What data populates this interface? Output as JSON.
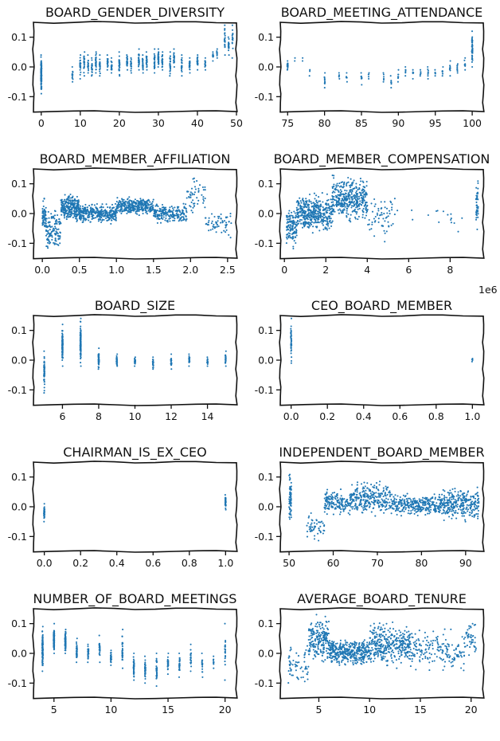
{
  "chart_data": [
    {
      "type": "scatter",
      "title": "BOARD_GENDER_DIVERSITY",
      "xlabel": "",
      "ylabel": "",
      "xlim": [
        -2,
        50
      ],
      "ylim": [
        -0.15,
        0.15
      ],
      "xticks": [
        "0",
        "10",
        "20",
        "30",
        "40",
        "50"
      ],
      "xtick_values": [
        0,
        10,
        20,
        30,
        40,
        50
      ],
      "yticks": [
        "0.1",
        "0.0",
        "-0.1"
      ],
      "ytick_values": [
        0.1,
        0.0,
        -0.1
      ],
      "x_range": [
        0,
        49
      ],
      "y_range": [
        -0.1,
        0.14
      ],
      "clusters": [
        {
          "x": 0,
          "y_min": -0.09,
          "y_max": 0.04,
          "pts": 120
        },
        {
          "x": 8,
          "y_min": -0.05,
          "y_max": 0.0,
          "pts": 12
        },
        {
          "x": 10,
          "y_min": -0.04,
          "y_max": 0.04,
          "pts": 25
        },
        {
          "x": 11,
          "y_min": -0.03,
          "y_max": 0.05,
          "pts": 25
        },
        {
          "x": 12,
          "y_min": -0.02,
          "y_max": 0.04,
          "pts": 20
        },
        {
          "x": 13,
          "y_min": -0.03,
          "y_max": 0.03,
          "pts": 20
        },
        {
          "x": 14,
          "y_min": -0.02,
          "y_max": 0.05,
          "pts": 25
        },
        {
          "x": 15,
          "y_min": -0.03,
          "y_max": 0.04,
          "pts": 25
        },
        {
          "x": 17,
          "y_min": -0.01,
          "y_max": 0.04,
          "pts": 20
        },
        {
          "x": 18,
          "y_min": -0.02,
          "y_max": 0.03,
          "pts": 20
        },
        {
          "x": 20,
          "y_min": -0.03,
          "y_max": 0.05,
          "pts": 25
        },
        {
          "x": 22,
          "y_min": -0.01,
          "y_max": 0.04,
          "pts": 25
        },
        {
          "x": 23,
          "y_min": -0.02,
          "y_max": 0.03,
          "pts": 20
        },
        {
          "x": 25,
          "y_min": -0.01,
          "y_max": 0.06,
          "pts": 30
        },
        {
          "x": 26,
          "y_min": -0.02,
          "y_max": 0.04,
          "pts": 20
        },
        {
          "x": 27,
          "y_min": -0.01,
          "y_max": 0.05,
          "pts": 25
        },
        {
          "x": 29,
          "y_min": -0.02,
          "y_max": 0.06,
          "pts": 30
        },
        {
          "x": 30,
          "y_min": 0.0,
          "y_max": 0.06,
          "pts": 30
        },
        {
          "x": 31,
          "y_min": -0.01,
          "y_max": 0.05,
          "pts": 25
        },
        {
          "x": 33,
          "y_min": -0.03,
          "y_max": 0.05,
          "pts": 25
        },
        {
          "x": 34,
          "y_min": 0.0,
          "y_max": 0.06,
          "pts": 20
        },
        {
          "x": 36,
          "y_min": -0.03,
          "y_max": 0.04,
          "pts": 20
        },
        {
          "x": 38,
          "y_min": -0.02,
          "y_max": 0.03,
          "pts": 20
        },
        {
          "x": 40,
          "y_min": -0.01,
          "y_max": 0.04,
          "pts": 20
        },
        {
          "x": 42,
          "y_min": -0.01,
          "y_max": 0.03,
          "pts": 15
        },
        {
          "x": 44,
          "y_min": 0.02,
          "y_max": 0.05,
          "pts": 10
        },
        {
          "x": 45,
          "y_min": 0.03,
          "y_max": 0.06,
          "pts": 10
        },
        {
          "x": 47,
          "y_min": 0.04,
          "y_max": 0.14,
          "pts": 20
        },
        {
          "x": 48,
          "y_min": 0.04,
          "y_max": 0.1,
          "pts": 20
        },
        {
          "x": 49,
          "y_min": 0.03,
          "y_max": 0.14,
          "pts": 15
        }
      ]
    },
    {
      "type": "scatter",
      "title": "BOARD_MEETING_ATTENDANCE",
      "xlabel": "",
      "ylabel": "",
      "xlim": [
        74,
        101.5
      ],
      "ylim": [
        -0.15,
        0.15
      ],
      "xticks": [
        "75",
        "80",
        "85",
        "90",
        "95",
        "100"
      ],
      "xtick_values": [
        75,
        80,
        85,
        90,
        95,
        100
      ],
      "yticks": [
        "0.1",
        "0.0",
        "-0.1"
      ],
      "ytick_values": [
        0.1,
        0.0,
        -0.1
      ],
      "x_range": [
        75,
        100
      ],
      "y_range": [
        -0.07,
        0.12
      ],
      "clusters": [
        {
          "x": 75,
          "y_min": -0.01,
          "y_max": 0.02,
          "pts": 30
        },
        {
          "x": 76,
          "y_min": 0.02,
          "y_max": 0.03,
          "pts": 2
        },
        {
          "x": 77,
          "y_min": 0.02,
          "y_max": 0.03,
          "pts": 2
        },
        {
          "x": 78,
          "y_min": -0.03,
          "y_max": -0.01,
          "pts": 3
        },
        {
          "x": 80,
          "y_min": -0.07,
          "y_max": -0.02,
          "pts": 10
        },
        {
          "x": 82,
          "y_min": -0.04,
          "y_max": -0.02,
          "pts": 5
        },
        {
          "x": 83,
          "y_min": -0.05,
          "y_max": -0.02,
          "pts": 6
        },
        {
          "x": 85,
          "y_min": -0.06,
          "y_max": -0.02,
          "pts": 8
        },
        {
          "x": 86,
          "y_min": -0.04,
          "y_max": -0.02,
          "pts": 5
        },
        {
          "x": 88,
          "y_min": -0.05,
          "y_max": -0.02,
          "pts": 6
        },
        {
          "x": 89,
          "y_min": -0.07,
          "y_max": -0.03,
          "pts": 8
        },
        {
          "x": 90,
          "y_min": -0.05,
          "y_max": -0.01,
          "pts": 8
        },
        {
          "x": 91,
          "y_min": -0.03,
          "y_max": 0.0,
          "pts": 6
        },
        {
          "x": 92,
          "y_min": -0.04,
          "y_max": -0.01,
          "pts": 6
        },
        {
          "x": 93,
          "y_min": -0.03,
          "y_max": -0.01,
          "pts": 6
        },
        {
          "x": 94,
          "y_min": -0.04,
          "y_max": 0.0,
          "pts": 8
        },
        {
          "x": 95,
          "y_min": -0.03,
          "y_max": -0.01,
          "pts": 6
        },
        {
          "x": 96,
          "y_min": -0.03,
          "y_max": 0.0,
          "pts": 8
        },
        {
          "x": 97,
          "y_min": -0.03,
          "y_max": 0.02,
          "pts": 8
        },
        {
          "x": 98,
          "y_min": -0.02,
          "y_max": 0.01,
          "pts": 8
        },
        {
          "x": 99,
          "y_min": -0.01,
          "y_max": 0.03,
          "pts": 10
        },
        {
          "x": 100,
          "y_min": 0.0,
          "y_max": 0.12,
          "pts": 50
        }
      ]
    },
    {
      "type": "scatter",
      "title": "BOARD_MEMBER_AFFILIATION",
      "xlabel": "",
      "ylabel": "",
      "xlim": [
        -0.12,
        2.62
      ],
      "ylim": [
        -0.15,
        0.15
      ],
      "xticks": [
        "0.0",
        "0.5",
        "1.0",
        "1.5",
        "2.0",
        "2.5"
      ],
      "xtick_values": [
        0,
        0.5,
        1.0,
        1.5,
        2.0,
        2.5
      ],
      "yticks": [
        "0.1",
        "0.0",
        "-0.1"
      ],
      "ytick_values": [
        0.1,
        0.0,
        -0.1
      ],
      "x_range": [
        0.0,
        2.55
      ],
      "y_range": [
        -0.14,
        0.14
      ],
      "bands": [
        {
          "x_from": 0.0,
          "x_to": 0.05,
          "y_min": -0.08,
          "y_max": 0.06,
          "pts": 60
        },
        {
          "x_from": 0.05,
          "x_to": 0.25,
          "y_min": -0.14,
          "y_max": 0.03,
          "pts": 120
        },
        {
          "x_from": 0.25,
          "x_to": 0.5,
          "y_min": -0.04,
          "y_max": 0.08,
          "pts": 260
        },
        {
          "x_from": 0.5,
          "x_to": 1.0,
          "y_min": -0.04,
          "y_max": 0.04,
          "pts": 320
        },
        {
          "x_from": 1.0,
          "x_to": 1.5,
          "y_min": -0.01,
          "y_max": 0.06,
          "pts": 300
        },
        {
          "x_from": 1.5,
          "x_to": 1.95,
          "y_min": -0.04,
          "y_max": 0.04,
          "pts": 200
        },
        {
          "x_from": 1.95,
          "x_to": 2.2,
          "y_min": -0.02,
          "y_max": 0.14,
          "pts": 50
        },
        {
          "x_from": 2.2,
          "x_to": 2.55,
          "y_min": -0.1,
          "y_max": 0.03,
          "pts": 60
        }
      ]
    },
    {
      "type": "scatter",
      "title": "BOARD_MEMBER_COMPENSATION",
      "offset_label": "1e6",
      "xlabel": "",
      "ylabel": "",
      "xlim": [
        -0.2,
        9.6
      ],
      "ylim": [
        -0.15,
        0.15
      ],
      "xticks": [
        "0",
        "2",
        "4",
        "6",
        "8"
      ],
      "xtick_values": [
        0,
        2,
        4,
        6,
        8
      ],
      "yticks": [
        "0.1",
        "0.0",
        "-0.1"
      ],
      "ytick_values": [
        0.1,
        0.0,
        -0.1
      ],
      "x_range": [
        0.1,
        9.4
      ],
      "y_range": [
        -0.13,
        0.14
      ],
      "bands": [
        {
          "x_from": 0.1,
          "x_to": 0.6,
          "y_min": -0.13,
          "y_max": 0.04,
          "pts": 120
        },
        {
          "x_from": 0.6,
          "x_to": 2.3,
          "y_min": -0.08,
          "y_max": 0.08,
          "pts": 420
        },
        {
          "x_from": 2.3,
          "x_to": 4.0,
          "y_min": -0.04,
          "y_max": 0.14,
          "pts": 380
        },
        {
          "x_from": 4.0,
          "x_to": 5.2,
          "y_min": -0.1,
          "y_max": 0.08,
          "pts": 60
        },
        {
          "x_from": 5.2,
          "x_to": 8.6,
          "y_min": -0.1,
          "y_max": 0.08,
          "pts": 20
        },
        {
          "x_from": 9.25,
          "x_to": 9.35,
          "y_min": -0.06,
          "y_max": 0.12,
          "pts": 40
        }
      ]
    },
    {
      "type": "scatter",
      "title": "BOARD_SIZE",
      "xlabel": "",
      "ylabel": "",
      "xlim": [
        4.4,
        15.6
      ],
      "ylim": [
        -0.15,
        0.15
      ],
      "xticks": [
        "6",
        "8",
        "10",
        "12",
        "14"
      ],
      "xtick_values": [
        6,
        8,
        10,
        12,
        14
      ],
      "yticks": [
        "0.1",
        "0.0",
        "-0.1"
      ],
      "ytick_values": [
        0.1,
        0.0,
        -0.1
      ],
      "x_range": [
        5,
        15
      ],
      "y_range": [
        -0.11,
        0.14
      ],
      "clusters": [
        {
          "x": 5,
          "y_min": -0.11,
          "y_max": 0.03,
          "pts": 60
        },
        {
          "x": 6,
          "y_min": -0.02,
          "y_max": 0.12,
          "pts": 90
        },
        {
          "x": 7,
          "y_min": -0.02,
          "y_max": 0.14,
          "pts": 100
        },
        {
          "x": 8,
          "y_min": -0.03,
          "y_max": 0.04,
          "pts": 40
        },
        {
          "x": 9,
          "y_min": -0.02,
          "y_max": 0.02,
          "pts": 30
        },
        {
          "x": 10,
          "y_min": -0.02,
          "y_max": 0.01,
          "pts": 25
        },
        {
          "x": 11,
          "y_min": -0.03,
          "y_max": 0.01,
          "pts": 25
        },
        {
          "x": 12,
          "y_min": -0.03,
          "y_max": 0.02,
          "pts": 30
        },
        {
          "x": 13,
          "y_min": -0.02,
          "y_max": 0.02,
          "pts": 25
        },
        {
          "x": 14,
          "y_min": -0.02,
          "y_max": 0.01,
          "pts": 20
        },
        {
          "x": 15,
          "y_min": -0.02,
          "y_max": 0.03,
          "pts": 25
        }
      ]
    },
    {
      "type": "scatter",
      "title": "CEO_BOARD_MEMBER",
      "xlabel": "",
      "ylabel": "",
      "xlim": [
        -0.06,
        1.06
      ],
      "ylim": [
        -0.15,
        0.15
      ],
      "xticks": [
        "0.0",
        "0.2",
        "0.4",
        "0.6",
        "0.8",
        "1.0"
      ],
      "xtick_values": [
        0,
        0.2,
        0.4,
        0.6,
        0.8,
        1.0
      ],
      "yticks": [
        "0.1",
        "0.0",
        "-0.1"
      ],
      "ytick_values": [
        0.1,
        0.0,
        -0.1
      ],
      "x_range": [
        0,
        1
      ],
      "y_range": [
        -0.01,
        0.14
      ],
      "clusters": [
        {
          "x": 0,
          "y_min": -0.01,
          "y_max": 0.14,
          "pts": 40
        },
        {
          "x": 1,
          "y_min": -0.005,
          "y_max": 0.005,
          "pts": 6
        }
      ]
    },
    {
      "type": "scatter",
      "title": "CHAIRMAN_IS_EX_CEO",
      "xlabel": "",
      "ylabel": "",
      "xlim": [
        -0.06,
        1.06
      ],
      "ylim": [
        -0.15,
        0.15
      ],
      "xticks": [
        "0.0",
        "0.2",
        "0.4",
        "0.6",
        "0.8",
        "1.0"
      ],
      "xtick_values": [
        0,
        0.2,
        0.4,
        0.6,
        0.8,
        1.0
      ],
      "yticks": [
        "0.1",
        "0.0",
        "-0.1"
      ],
      "ytick_values": [
        0.1,
        0.0,
        -0.1
      ],
      "x_range": [
        0,
        1
      ],
      "y_range": [
        -0.05,
        0.04
      ],
      "clusters": [
        {
          "x": 0,
          "y_min": -0.05,
          "y_max": 0.01,
          "pts": 40
        },
        {
          "x": 1,
          "y_min": -0.01,
          "y_max": 0.04,
          "pts": 40
        }
      ]
    },
    {
      "type": "scatter",
      "title": "INDEPENDENT_BOARD_MEMBER",
      "xlabel": "",
      "ylabel": "",
      "xlim": [
        48,
        94
      ],
      "ylim": [
        -0.15,
        0.15
      ],
      "xticks": [
        "50",
        "60",
        "70",
        "80",
        "90"
      ],
      "xtick_values": [
        50,
        60,
        70,
        80,
        90
      ],
      "yticks": [
        "0.1",
        "0.0",
        "-0.1"
      ],
      "ytick_values": [
        0.1,
        0.0,
        -0.1
      ],
      "x_range": [
        50,
        93
      ],
      "y_range": [
        -0.12,
        0.14
      ],
      "bands": [
        {
          "x_from": 50,
          "x_to": 50.5,
          "y_min": -0.09,
          "y_max": 0.14,
          "pts": 60
        },
        {
          "x_from": 54,
          "x_to": 58,
          "y_min": -0.12,
          "y_max": -0.01,
          "pts": 50
        },
        {
          "x_from": 58,
          "x_to": 64,
          "y_min": -0.04,
          "y_max": 0.07,
          "pts": 160
        },
        {
          "x_from": 64,
          "x_to": 73,
          "y_min": -0.04,
          "y_max": 0.1,
          "pts": 260
        },
        {
          "x_from": 73,
          "x_to": 84,
          "y_min": -0.04,
          "y_max": 0.05,
          "pts": 280
        },
        {
          "x_from": 84,
          "x_to": 93,
          "y_min": -0.06,
          "y_max": 0.08,
          "pts": 300
        }
      ]
    },
    {
      "type": "scatter",
      "title": "NUMBER_OF_BOARD_MEETINGS",
      "xlabel": "",
      "ylabel": "",
      "xlim": [
        3.2,
        21
      ],
      "ylim": [
        -0.15,
        0.15
      ],
      "xticks": [
        "5",
        "10",
        "15",
        "20"
      ],
      "xtick_values": [
        5,
        10,
        15,
        20
      ],
      "yticks": [
        "0.1",
        "0.0",
        "-0.1"
      ],
      "ytick_values": [
        0.1,
        0.0,
        -0.1
      ],
      "x_range": [
        4,
        20
      ],
      "y_range": [
        -0.11,
        0.1
      ],
      "clusters": [
        {
          "x": 4,
          "y_min": -0.06,
          "y_max": 0.09,
          "pts": 110
        },
        {
          "x": 5,
          "y_min": 0.0,
          "y_max": 0.1,
          "pts": 110
        },
        {
          "x": 6,
          "y_min": 0.0,
          "y_max": 0.08,
          "pts": 90
        },
        {
          "x": 7,
          "y_min": -0.03,
          "y_max": 0.05,
          "pts": 40
        },
        {
          "x": 8,
          "y_min": -0.03,
          "y_max": 0.03,
          "pts": 30
        },
        {
          "x": 9,
          "y_min": -0.03,
          "y_max": 0.06,
          "pts": 30
        },
        {
          "x": 10,
          "y_min": -0.04,
          "y_max": 0.01,
          "pts": 30
        },
        {
          "x": 11,
          "y_min": -0.05,
          "y_max": 0.08,
          "pts": 30
        },
        {
          "x": 12,
          "y_min": -0.09,
          "y_max": 0.0,
          "pts": 40
        },
        {
          "x": 13,
          "y_min": -0.1,
          "y_max": -0.01,
          "pts": 35
        },
        {
          "x": 14,
          "y_min": -0.11,
          "y_max": 0.0,
          "pts": 35
        },
        {
          "x": 15,
          "y_min": -0.07,
          "y_max": 0.0,
          "pts": 25
        },
        {
          "x": 16,
          "y_min": -0.08,
          "y_max": 0.0,
          "pts": 25
        },
        {
          "x": 17,
          "y_min": -0.06,
          "y_max": 0.03,
          "pts": 20
        },
        {
          "x": 18,
          "y_min": -0.08,
          "y_max": 0.0,
          "pts": 15
        },
        {
          "x": 19,
          "y_min": -0.05,
          "y_max": -0.01,
          "pts": 10
        },
        {
          "x": 20,
          "y_min": -0.09,
          "y_max": 0.1,
          "pts": 20
        }
      ]
    },
    {
      "type": "scatter",
      "title": "AVERAGE_BOARD_TENURE",
      "xlabel": "",
      "ylabel": "",
      "xlim": [
        1.2,
        21.2
      ],
      "ylim": [
        -0.15,
        0.15
      ],
      "xticks": [
        "5",
        "10",
        "15",
        "20"
      ],
      "xtick_values": [
        5,
        10,
        15,
        20
      ],
      "yticks": [
        "0.1",
        "0.0",
        "-0.1"
      ],
      "ytick_values": [
        0.1,
        0.0,
        -0.1
      ],
      "x_range": [
        2,
        20.5
      ],
      "y_range": [
        -0.13,
        0.14
      ],
      "bands": [
        {
          "x_from": 2,
          "x_to": 4,
          "y_min": -0.13,
          "y_max": 0.06,
          "pts": 60
        },
        {
          "x_from": 4,
          "x_to": 6,
          "y_min": -0.05,
          "y_max": 0.14,
          "pts": 200
        },
        {
          "x_from": 6,
          "x_to": 10,
          "y_min": -0.05,
          "y_max": 0.06,
          "pts": 380
        },
        {
          "x_from": 10,
          "x_to": 14,
          "y_min": -0.06,
          "y_max": 0.12,
          "pts": 340
        },
        {
          "x_from": 14,
          "x_to": 19.5,
          "y_min": -0.08,
          "y_max": 0.1,
          "pts": 180
        },
        {
          "x_from": 19.5,
          "x_to": 20.5,
          "y_min": -0.03,
          "y_max": 0.14,
          "pts": 40
        }
      ]
    }
  ]
}
